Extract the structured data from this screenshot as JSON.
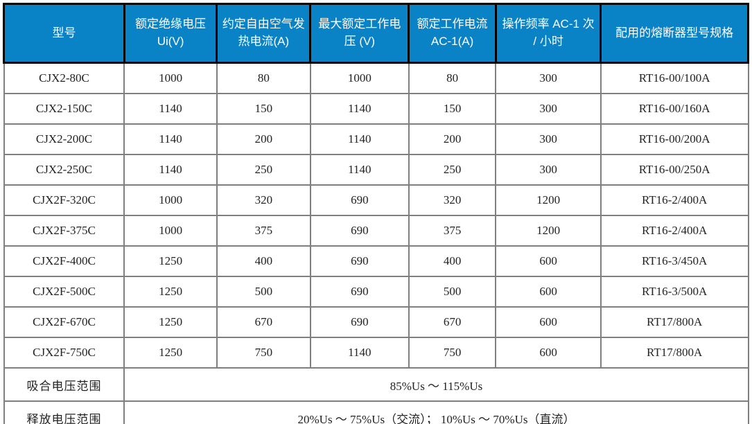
{
  "colors": {
    "header_bg": "#0a83c6",
    "header_text": "#ffffff",
    "header_border": "#000000",
    "body_border": "#7f7f7f",
    "body_text": "#222222"
  },
  "table": {
    "columns": [
      {
        "label": "型号",
        "width": "16.2%"
      },
      {
        "label": "额定绝缘电压 Ui(V)",
        "width": "12.4%"
      },
      {
        "label": "约定自由空气发热电流(A)",
        "width": "12.6%"
      },
      {
        "label": "最大额定工作电压 (V)",
        "width": "13.2%"
      },
      {
        "label": "额定工作电流 AC-1(A)",
        "width": "11.7%"
      },
      {
        "label": "操作频率 AC-1 次 / 小时",
        "width": "14.1%"
      },
      {
        "label": "配用的熔断器型号规格",
        "width": "19.8%"
      }
    ],
    "rows": [
      [
        "CJX2-80C",
        "1000",
        "80",
        "1000",
        "80",
        "300",
        "RT16-00/100A"
      ],
      [
        "CJX2-150C",
        "1140",
        "150",
        "1140",
        "150",
        "300",
        "RT16-00/160A"
      ],
      [
        "CJX2-200C",
        "1140",
        "200",
        "1140",
        "200",
        "300",
        "RT16-00/200A"
      ],
      [
        "CJX2-250C",
        "1140",
        "250",
        "1140",
        "250",
        "300",
        "RT16-00/250A"
      ],
      [
        "CJX2F-320C",
        "1000",
        "320",
        "690",
        "320",
        "1200",
        "RT16-2/400A"
      ],
      [
        "CJX2F-375C",
        "1000",
        "375",
        "690",
        "375",
        "1200",
        "RT16-2/400A"
      ],
      [
        "CJX2F-400C",
        "1250",
        "400",
        "690",
        "400",
        "600",
        "RT16-3/450A"
      ],
      [
        "CJX2F-500C",
        "1250",
        "500",
        "690",
        "500",
        "600",
        "RT16-3/500A"
      ],
      [
        "CJX2F-670C",
        "1250",
        "670",
        "690",
        "670",
        "600",
        "RT17/800A"
      ],
      [
        "CJX2F-750C",
        "1250",
        "750",
        "1140",
        "750",
        "600",
        "RT17/800A"
      ]
    ],
    "footer_rows": [
      {
        "label": "吸合电压范围",
        "value": "85%Us ～ 115%Us"
      },
      {
        "label": "释放电压范围",
        "value": "20%Us ～ 75%Us（交流）； 10%Us ～ 70%Us（直流）"
      }
    ]
  }
}
